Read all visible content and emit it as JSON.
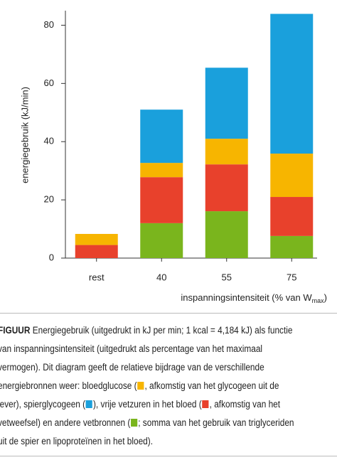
{
  "chart_data": {
    "type": "bar",
    "stacked": true,
    "ylabel": "energiegebruik (kJ/min)",
    "xlabel": {
      "text": "inspanningsintensiteit (% van W",
      "sub": "max",
      "end": ")"
    },
    "categories": [
      "rest",
      "40",
      "55",
      "75"
    ],
    "series": [
      {
        "color": "#7ab51d",
        "values": [
          null,
          12,
          16.1,
          7.6
        ]
      },
      {
        "color": "#e8412c",
        "values": [
          4.5,
          15.8,
          16.1,
          13.4
        ]
      },
      {
        "color": "#f7b500",
        "values": [
          3.8,
          4.9,
          8.8,
          14.9
        ]
      },
      {
        "color": "#1aa0dc",
        "values": [
          null,
          18.3,
          24.4,
          48
        ]
      }
    ],
    "ylim": [
      0,
      85
    ],
    "yticks": [
      0,
      20,
      40,
      60,
      80
    ],
    "grid": false
  },
  "caption": {
    "label": "FIGUUR",
    "lines": [
      [
        {
          "text": " Energiegebruik (uitgedrukt in kJ per min; 1 kcal = 4,184 kJ) als functie"
        }
      ],
      [
        {
          "text": "van inspanningsintensiteit (uitgedrukt als percentage van het maximaal"
        }
      ],
      [
        {
          "text": "vermogen). Dit diagram geeft de relatieve bijdrage van de verschillende"
        }
      ],
      [
        {
          "text": "energiebronnen weer: bloedglucose ("
        },
        {
          "swatch": "#f7b500"
        },
        {
          "text": ", afkomstig van het glycogeen uit de"
        }
      ],
      [
        {
          "text": "lever), spierglycogeen ("
        },
        {
          "swatch": "#1aa0dc"
        },
        {
          "text": "), vrije vetzuren in het bloed ("
        },
        {
          "swatch": "#e8412c"
        },
        {
          "text": ", afkomstig van het"
        }
      ],
      [
        {
          "text": "vetweefsel) en andere vetbronnen ("
        },
        {
          "swatch": "#7ab51d"
        },
        {
          "text": "; somma van het gebruik van triglyceriden"
        }
      ],
      [
        {
          "text": "uit de spier en lipoproteïnen in het bloed)."
        }
      ]
    ]
  }
}
